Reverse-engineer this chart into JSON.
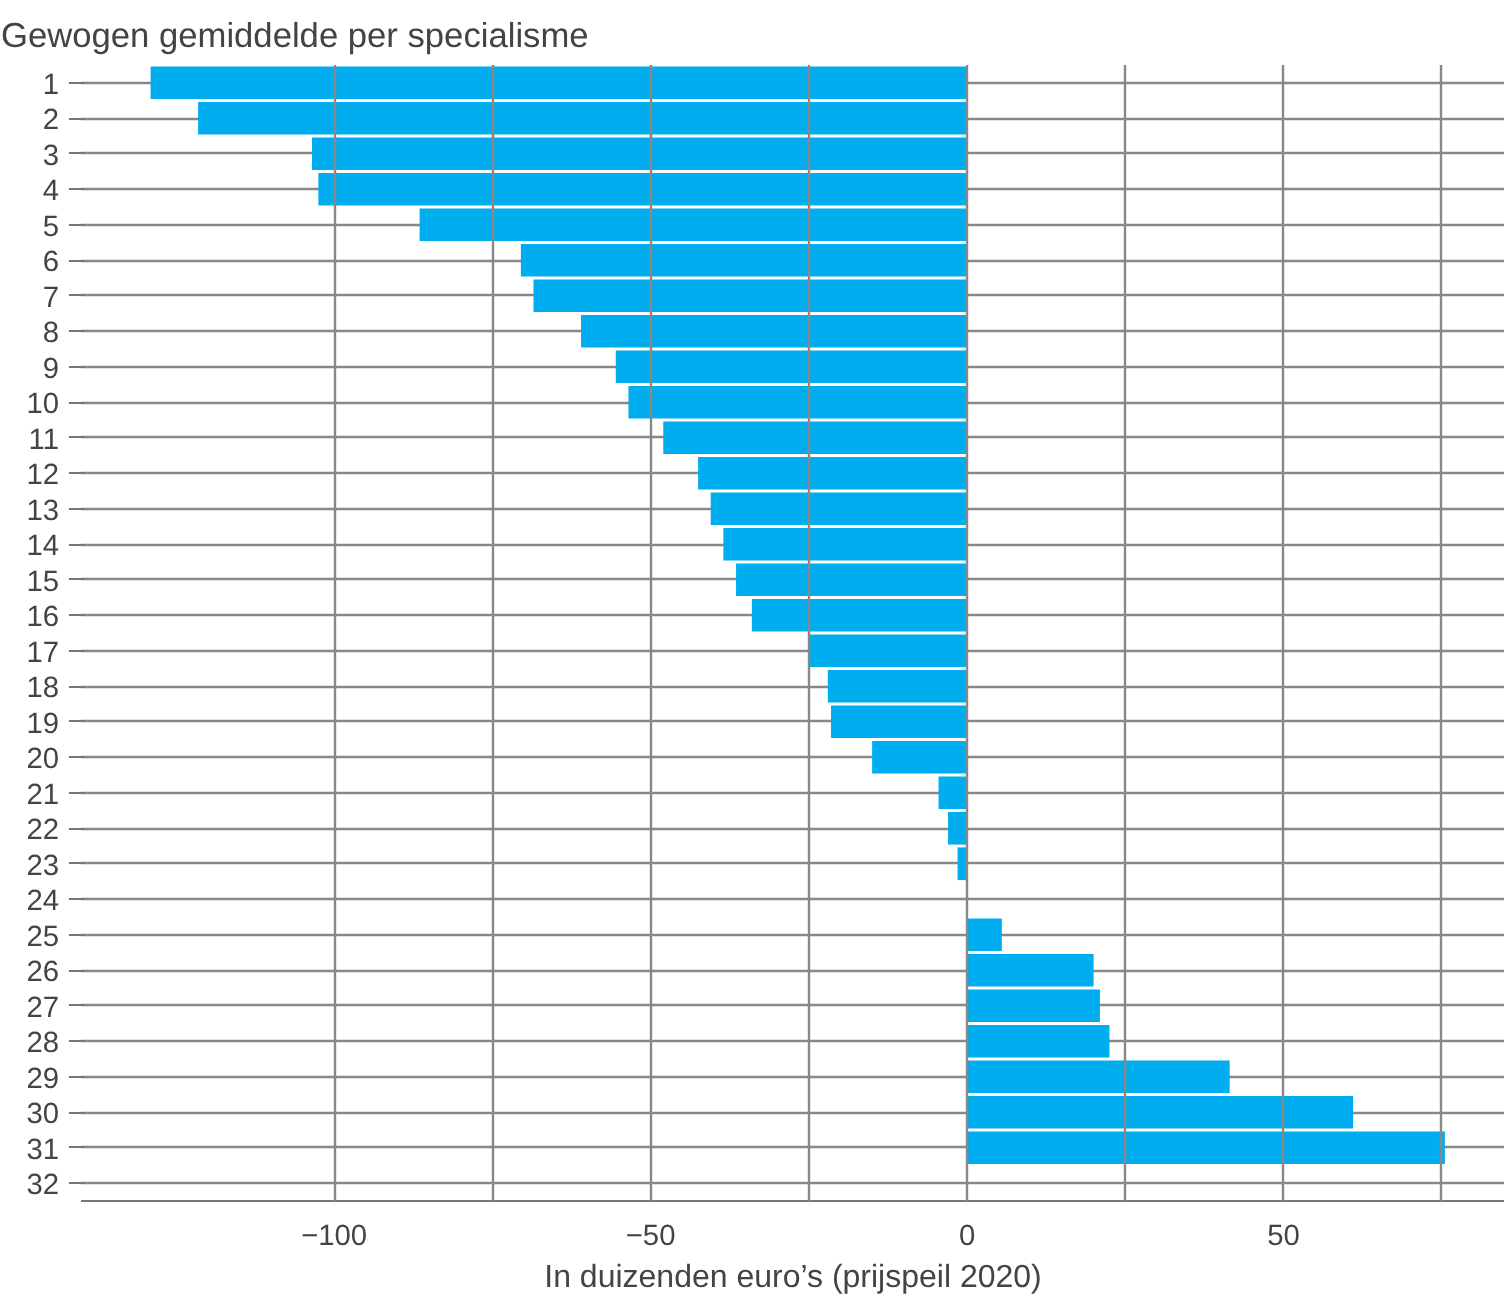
{
  "chart_data": {
    "type": "bar",
    "orientation": "horizontal",
    "title": "Gewogen gemiddelde per specialisme",
    "xlabel": "In duizenden euro’s (prijspeil 2020)",
    "categories": [
      "1",
      "2",
      "3",
      "4",
      "5",
      "6",
      "7",
      "8",
      "9",
      "10",
      "11",
      "12",
      "13",
      "14",
      "15",
      "16",
      "17",
      "18",
      "19",
      "20",
      "21",
      "22",
      "23",
      "24",
      "25",
      "26",
      "27",
      "28",
      "29",
      "30",
      "31",
      "32"
    ],
    "series": [
      {
        "color": "#00aeef",
        "values": [
          -129,
          -121.5,
          -103.5,
          -102.5,
          -86.5,
          -70.5,
          -68.5,
          -61,
          -55.5,
          -53.5,
          -48,
          -42.5,
          -40.5,
          -38.5,
          -36.5,
          -34,
          -25,
          -22,
          -21.5,
          -15,
          -4.5,
          -3,
          -1.5,
          0,
          5.5,
          20,
          21,
          22.5,
          41.5,
          61,
          75.5,
          0
        ]
      }
    ],
    "xlim": [
      -140,
      85
    ],
    "xticks": [
      {
        "value": -100,
        "label": "−100"
      },
      {
        "value": -75,
        "label": null
      },
      {
        "value": -50,
        "label": "−50"
      },
      {
        "value": -25,
        "label": null
      },
      0,
      {
        "value": 25,
        "label": null
      },
      50,
      {
        "value": 75,
        "label": null
      }
    ],
    "grid": true
  }
}
